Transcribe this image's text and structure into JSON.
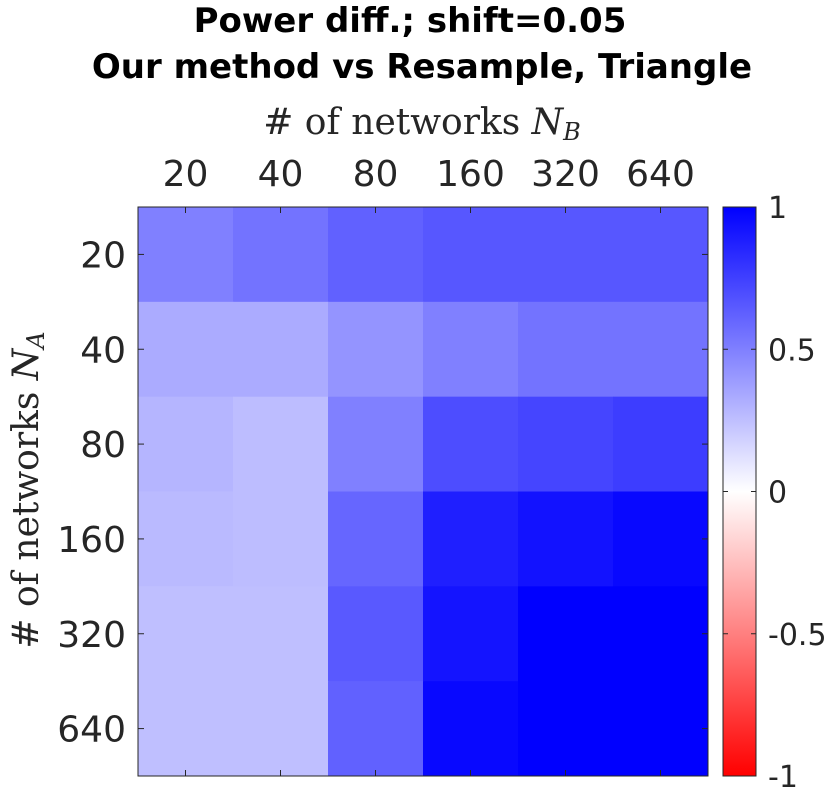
{
  "chart_data": {
    "type": "heatmap",
    "title": [
      "Power diff.; shift=0.05",
      "Our method vs Resample, Triangle"
    ],
    "xlabel": {
      "prefix": "# of networks ",
      "var": "N",
      "sub": "B"
    },
    "ylabel": {
      "prefix": "# of networks ",
      "var": "N",
      "sub": "A"
    },
    "x_categories": [
      "20",
      "40",
      "80",
      "160",
      "320",
      "640"
    ],
    "y_categories": [
      "20",
      "40",
      "80",
      "160",
      "320",
      "640"
    ],
    "x_position": "top",
    "values": [
      [
        0.5,
        0.55,
        0.62,
        0.66,
        0.66,
        0.66
      ],
      [
        0.33,
        0.33,
        0.42,
        0.5,
        0.55,
        0.55
      ],
      [
        0.29,
        0.26,
        0.5,
        0.7,
        0.73,
        0.76
      ],
      [
        0.27,
        0.26,
        0.6,
        0.88,
        0.93,
        0.97
      ],
      [
        0.25,
        0.25,
        0.65,
        0.92,
        1.0,
        1.0
      ],
      [
        0.25,
        0.25,
        0.62,
        0.97,
        1.0,
        1.0
      ]
    ],
    "colorbar": {
      "range": [
        -1,
        1
      ],
      "ticks": [
        1,
        0.5,
        0,
        -0.5,
        -1
      ],
      "tick_labels": [
        "1",
        "0.5",
        "0",
        "-0.5",
        "-1"
      ],
      "colormap": "red-white-blue",
      "low_color": "#ff0000",
      "mid_color": "#ffffff",
      "high_color": "#0000ff"
    },
    "grid": false
  }
}
